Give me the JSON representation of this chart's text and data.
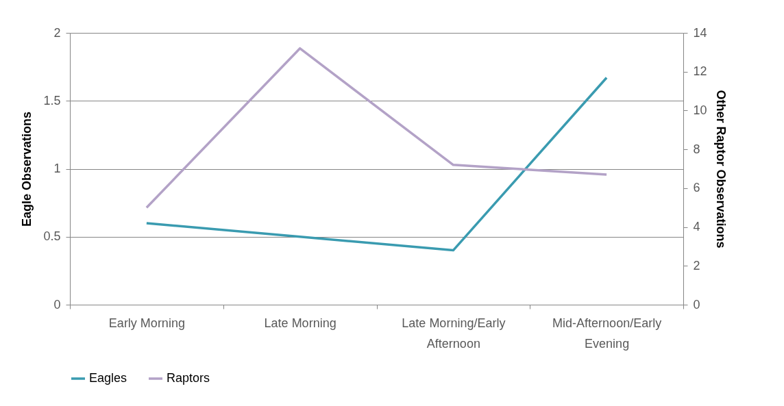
{
  "chart_data": {
    "type": "line",
    "categories": [
      "Early Morning",
      "Late Morning",
      "Late Morning/Early Afternoon",
      "Mid-Afternoon/Early Evening"
    ],
    "ylabel": "Eagle Observations",
    "y2label": "Other Raptor Observations",
    "ylim": [
      0,
      2
    ],
    "yticks": [
      0,
      0.5,
      1,
      1.5,
      2
    ],
    "y2lim": [
      0,
      14
    ],
    "y2ticks": [
      0,
      2,
      4,
      6,
      8,
      10,
      12,
      14
    ],
    "grid": "y",
    "legend": "bottom",
    "series": [
      {
        "name": "Eagles",
        "color": "#3a9bb0",
        "values": [
          0.6,
          0.5,
          0.4,
          1.67
        ]
      },
      {
        "name": "Raptors",
        "color": "#b3a2c7",
        "values": [
          5,
          13.2,
          7.2,
          6.7
        ],
        "axis": "y2"
      }
    ]
  }
}
